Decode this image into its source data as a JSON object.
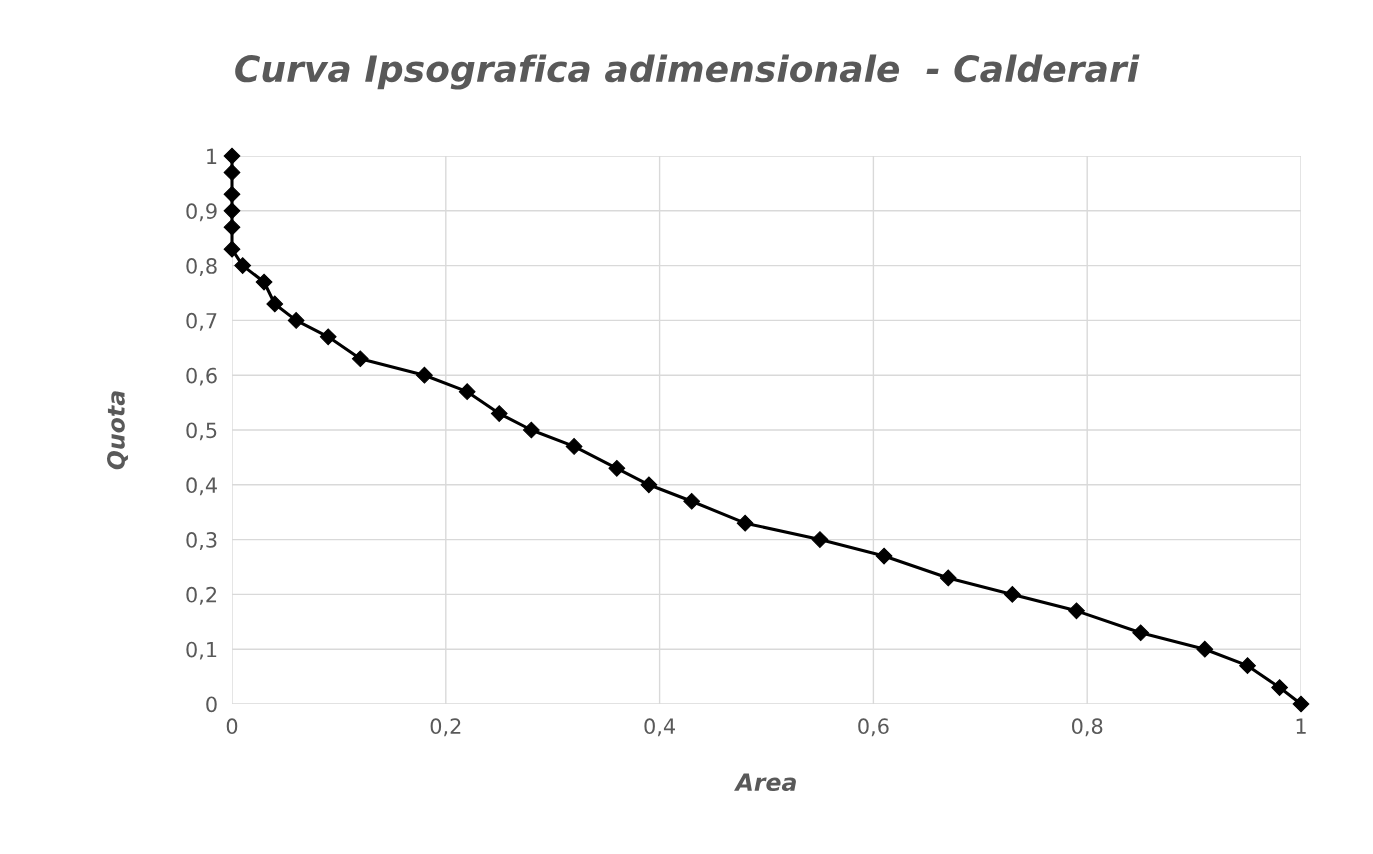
{
  "chart_data": {
    "type": "line",
    "title": "Curva Ipsografica adimensionale  - Calderari",
    "xlabel": "Area",
    "ylabel": "Quota",
    "x": [
      0,
      0,
      0,
      0,
      0,
      0,
      0.01,
      0.03,
      0.04,
      0.06,
      0.09,
      0.12,
      0.18,
      0.22,
      0.25,
      0.28,
      0.32,
      0.36,
      0.39,
      0.43,
      0.48,
      0.55,
      0.61,
      0.67,
      0.73,
      0.79,
      0.85,
      0.91,
      0.95,
      0.98,
      1
    ],
    "series": [
      {
        "color": "#000000",
        "values": [
          1,
          0.97,
          0.93,
          0.9,
          0.87,
          0.83,
          0.8,
          0.77,
          0.73,
          0.7,
          0.67,
          0.63,
          0.6,
          0.57,
          0.53,
          0.5,
          0.47,
          0.43,
          0.4,
          0.37,
          0.33,
          0.3,
          0.27,
          0.23,
          0.2,
          0.17,
          0.13,
          0.1,
          0.07,
          0.03,
          0
        ]
      }
    ],
    "xlim": [
      0,
      1
    ],
    "ylim": [
      0,
      1
    ],
    "xticks": [
      0,
      {
        "value": 0.2,
        "label": "0,2"
      },
      {
        "value": 0.4,
        "label": "0,4"
      },
      {
        "value": 0.6,
        "label": "0,6"
      },
      {
        "value": 0.8,
        "label": "0,8"
      },
      1
    ],
    "yticks": [
      0,
      {
        "value": 0.1,
        "label": "0,1"
      },
      {
        "value": 0.2,
        "label": "0,2"
      },
      {
        "value": 0.3,
        "label": "0,3"
      },
      {
        "value": 0.4,
        "label": "0,4"
      },
      {
        "value": 0.5,
        "label": "0,5"
      },
      {
        "value": 0.6,
        "label": "0,6"
      },
      {
        "value": 0.7,
        "label": "0,7"
      },
      {
        "value": 0.8,
        "label": "0,8"
      },
      {
        "value": 0.9,
        "label": "0,9"
      },
      1
    ],
    "grid": true,
    "marker": "diamond",
    "line_style": "solid"
  }
}
